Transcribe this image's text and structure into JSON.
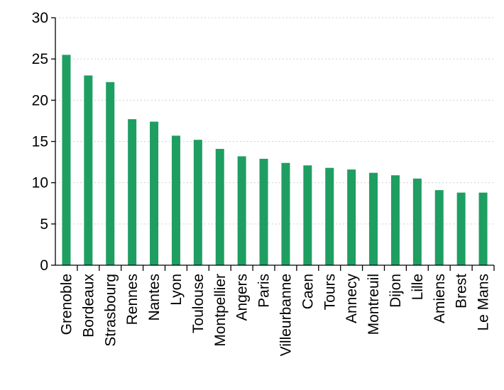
{
  "chart_data": {
    "type": "bar",
    "title": "",
    "xlabel": "",
    "ylabel": "",
    "categories": [
      "Grenoble",
      "Bordeaux",
      "Strasbourg",
      "Rennes",
      "Nantes",
      "Lyon",
      "Toulouse",
      "Montpellier",
      "Angers",
      "Paris",
      "Villeurbanne",
      "Caen",
      "Tours",
      "Annecy",
      "Montreuil",
      "Dijon",
      "Lille",
      "Amiens",
      "Brest",
      "Le Mans"
    ],
    "values": [
      25.5,
      23.0,
      22.2,
      17.7,
      17.4,
      15.7,
      15.2,
      14.1,
      13.2,
      12.9,
      12.4,
      12.1,
      11.8,
      11.6,
      11.2,
      10.9,
      10.5,
      9.1,
      8.8,
      8.8
    ],
    "ylim": [
      0,
      30
    ],
    "yticks": [
      "0",
      "5",
      "10",
      "15",
      "20",
      "25",
      "30"
    ],
    "grid": true,
    "legend": "none",
    "bar_color": "#1f9e62"
  }
}
